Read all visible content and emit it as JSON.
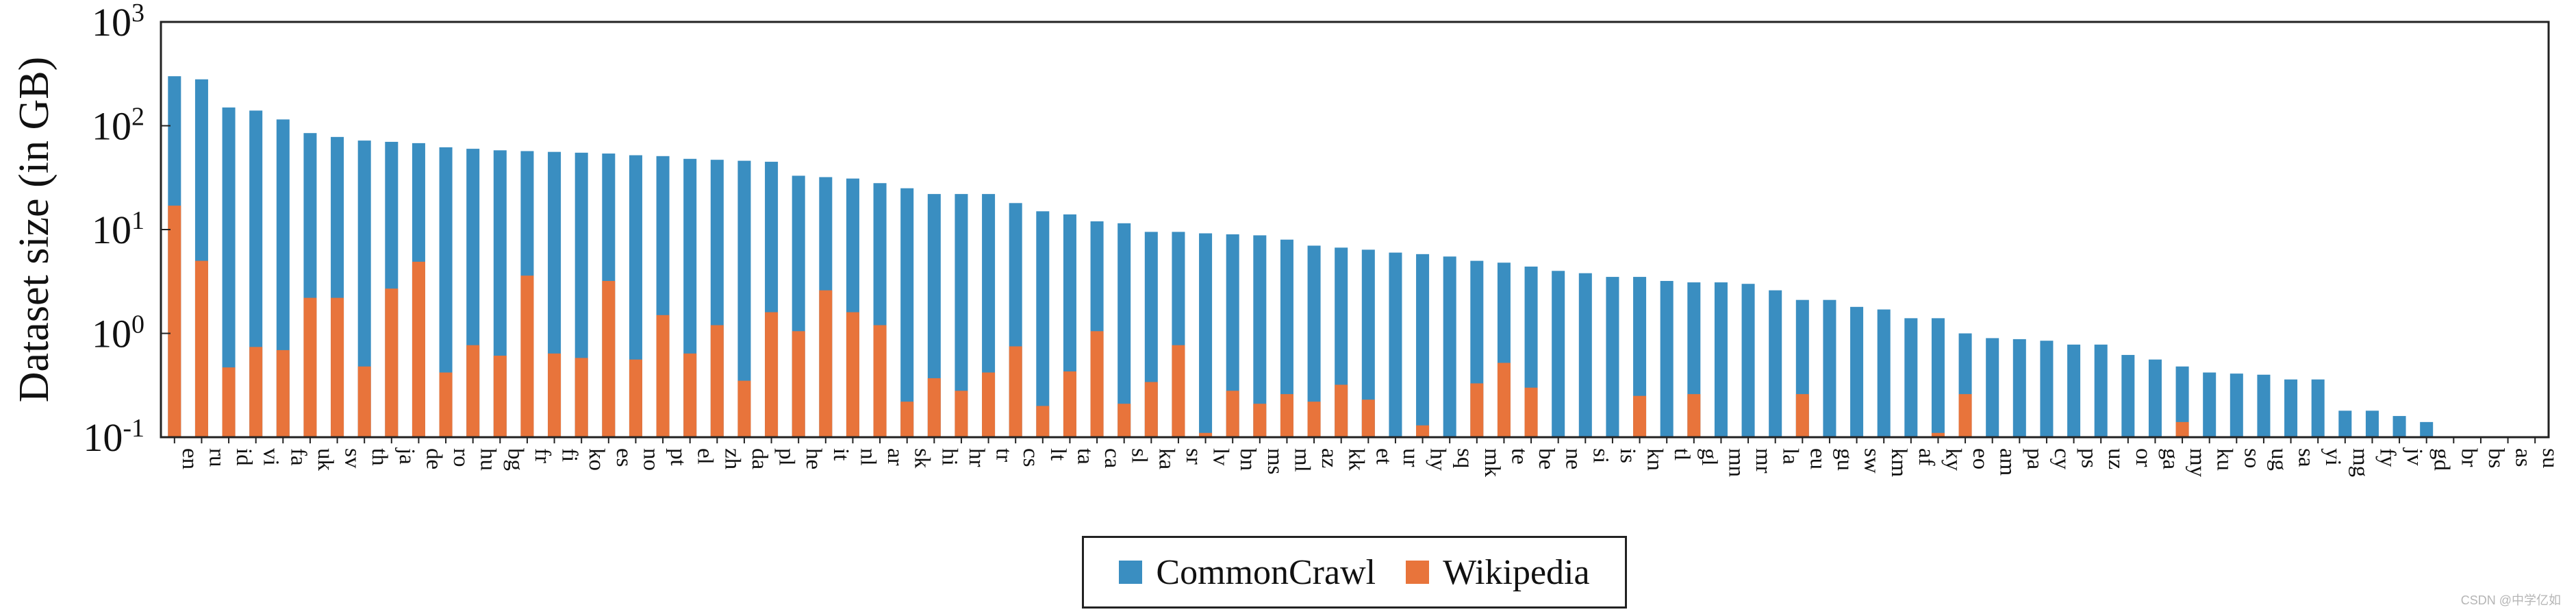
{
  "chart_data": {
    "type": "bar",
    "stacked": false,
    "log_scale_y": true,
    "ylabel": "Dataset size (in GB)",
    "xlabel": "",
    "ylim": [
      0.1,
      1000
    ],
    "yticks": [
      {
        "base": "10",
        "exp": "-1"
      },
      {
        "base": "10",
        "exp": "0"
      },
      {
        "base": "10",
        "exp": "1"
      },
      {
        "base": "10",
        "exp": "2"
      },
      {
        "base": "10",
        "exp": "3"
      }
    ],
    "grid": false,
    "legend_position": "bottom-center",
    "categories": [
      "en",
      "ru",
      "id",
      "vi",
      "fa",
      "uk",
      "sv",
      "th",
      "ja",
      "de",
      "ro",
      "hu",
      "bg",
      "fr",
      "fi",
      "ko",
      "es",
      "no",
      "pt",
      "el",
      "zh",
      "da",
      "pl",
      "he",
      "it",
      "nl",
      "ar",
      "sk",
      "hi",
      "hr",
      "tr",
      "cs",
      "lt",
      "ta",
      "ca",
      "sl",
      "ka",
      "sr",
      "lv",
      "bn",
      "ms",
      "ml",
      "az",
      "kk",
      "et",
      "ur",
      "hy",
      "sq",
      "mk",
      "te",
      "be",
      "ne",
      "si",
      "is",
      "kn",
      "tl",
      "gl",
      "mn",
      "mr",
      "la",
      "eu",
      "gu",
      "sw",
      "km",
      "af",
      "ky",
      "eo",
      "am",
      "pa",
      "cy",
      "ps",
      "uz",
      "or",
      "ga",
      "my",
      "ku",
      "so",
      "ug",
      "sa",
      "yi",
      "mg",
      "fy",
      "jv",
      "gd",
      "br",
      "bs",
      "as",
      "su"
    ],
    "series": [
      {
        "name": "CommonCrawl",
        "color": "#3a8ec1",
        "values": [
          300,
          280,
          150,
          140,
          115,
          85,
          78,
          72,
          70,
          68,
          62,
          60,
          58,
          57,
          56,
          55,
          54,
          52,
          51,
          48,
          47,
          46,
          45,
          33,
          32,
          31,
          28,
          25,
          22,
          22,
          22,
          18,
          15,
          14,
          12,
          11.5,
          9.5,
          9.5,
          9.2,
          9,
          8.8,
          8,
          7,
          6.7,
          6.4,
          6,
          5.8,
          5.5,
          5,
          4.8,
          4.4,
          4,
          3.8,
          3.5,
          3.5,
          3.2,
          3.1,
          3.1,
          3,
          2.6,
          2.1,
          2.1,
          1.8,
          1.7,
          1.4,
          1.4,
          1.0,
          0.9,
          0.88,
          0.85,
          0.78,
          0.78,
          0.62,
          0.56,
          0.48,
          0.42,
          0.41,
          0.4,
          0.36,
          0.36,
          0.18,
          0.18,
          0.16,
          0.14,
          0.1,
          0.1,
          0.1,
          0.1
        ]
      },
      {
        "name": "Wikipedia",
        "color": "#e8743b",
        "values": [
          17,
          5,
          0.47,
          0.74,
          0.69,
          2.2,
          2.2,
          0.48,
          2.7,
          4.9,
          0.42,
          0.77,
          0.61,
          3.6,
          0.64,
          0.58,
          3.2,
          0.56,
          1.5,
          0.64,
          1.2,
          0.35,
          1.6,
          1.05,
          2.6,
          1.6,
          1.2,
          0.22,
          0.37,
          0.28,
          0.42,
          0.75,
          0.2,
          0.43,
          1.05,
          0.21,
          0.34,
          0.77,
          0.11,
          0.28,
          0.21,
          0.26,
          0.22,
          0.32,
          0.23,
          0.1,
          0.13,
          0.1,
          0.33,
          0.52,
          0.3,
          0.1,
          0.1,
          0.1,
          0.25,
          0.1,
          0.26,
          0.1,
          0.1,
          0.1,
          0.26,
          0.1,
          0.1,
          0.1,
          0.1,
          0.11,
          0.26,
          0.1,
          0.1,
          0.1,
          0.1,
          0.1,
          0.1,
          0.1,
          0.14,
          0.1,
          0.1,
          0.1,
          0.1,
          0.1,
          0.1,
          0.1,
          0.1,
          0.1,
          0.1,
          0.1,
          0.1,
          0.1
        ]
      }
    ]
  },
  "watermark": "CSDN @中学亿如"
}
